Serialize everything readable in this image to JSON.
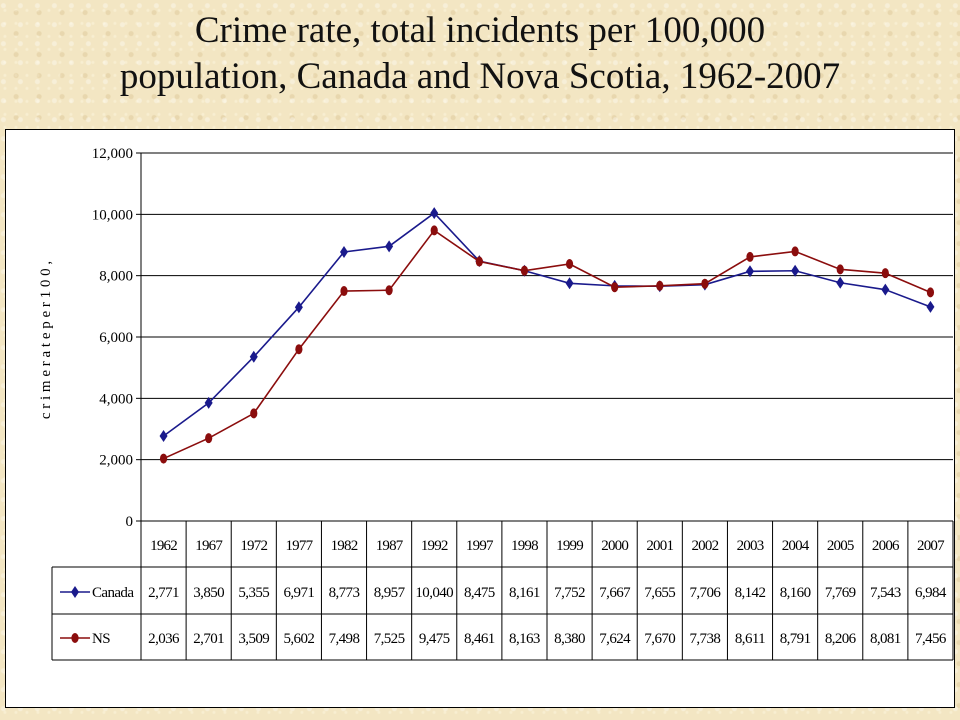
{
  "title_line1": "Crime rate, total incidents per 100,000",
  "title_line2": "population, Canada and Nova Scotia, 1962-2007",
  "colors": {
    "canada": "#1a1a8c",
    "ns": "#8b0d0d",
    "background": "#f3e6c3"
  },
  "chart_data": {
    "type": "line",
    "ylabel": "c r i m e r a t e p e r 1 0 0 ,",
    "ylim": [
      0,
      12000
    ],
    "yticks": [
      "12,000",
      "10,000",
      "8,000",
      "6,000",
      "4,000",
      "2,000",
      "0"
    ],
    "ytick_values": [
      12000,
      10000,
      8000,
      6000,
      4000,
      2000,
      0
    ],
    "grid": true,
    "categories": [
      "1962",
      "1967",
      "1972",
      "1977",
      "1982",
      "1987",
      "1992",
      "1997",
      "1998",
      "1999",
      "2000",
      "2001",
      "2002",
      "2003",
      "2004",
      "2005",
      "2006",
      "2007"
    ],
    "series": [
      {
        "name": "Canada",
        "color": "#1a1a8c",
        "values": [
          2771,
          3850,
          5355,
          6971,
          8773,
          8957,
          10040,
          8475,
          8161,
          7752,
          7667,
          7655,
          7706,
          8142,
          8160,
          7769,
          7543,
          6984
        ],
        "labels": [
          "2,771",
          "3,850",
          "5,355",
          "6,971",
          "8,773",
          "8,957",
          "10,040",
          "8,475",
          "8,161",
          "7,752",
          "7,667",
          "7,655",
          "7,706",
          "8,142",
          "8,160",
          "7,769",
          "7,543",
          "6,984"
        ]
      },
      {
        "name": "NS",
        "color": "#8b0d0d",
        "values": [
          2036,
          2701,
          3509,
          5602,
          7498,
          7525,
          9475,
          8461,
          8163,
          8380,
          7624,
          7670,
          7738,
          8611,
          8791,
          8206,
          8081,
          7456
        ],
        "labels": [
          "2,036",
          "2,701",
          "3,509",
          "5,602",
          "7,498",
          "7,525",
          "9,475",
          "8,461",
          "8,163",
          "8,380",
          "7,624",
          "7,670",
          "7,738",
          "8,611",
          "8,791",
          "8,206",
          "8,081",
          "7,456"
        ]
      }
    ],
    "legend": "data-table"
  }
}
